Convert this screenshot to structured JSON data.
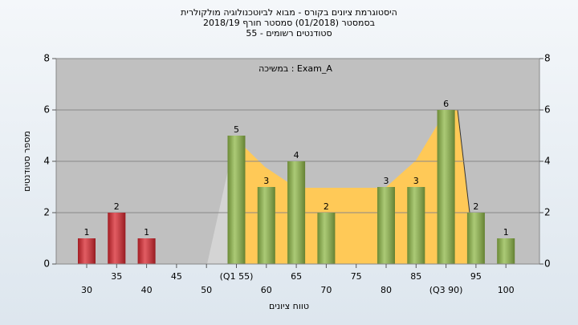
{
  "chart_data": {
    "type": "bar",
    "title": [
      "היסטוגרמת ציונים בקורס - מבוא לביוטכנולוגיה מולקולרית",
      "בסמסטר  (01/2018)  סמסטר חורף 2018/19",
      "סטודנטים רשומים - 55"
    ],
    "annotation": "במשיכה : Exam_A",
    "x_label": "טווח ציונים",
    "y_label": "מספר סטודנטים",
    "categories": [
      "30",
      "35",
      "40",
      "45",
      "50",
      "(Q1 55)",
      "60",
      "65",
      "70",
      "75",
      "80",
      "85",
      "(Q3 90)",
      "95",
      "100"
    ],
    "values": [
      1,
      2,
      1,
      0,
      0,
      5,
      3,
      4,
      2,
      0,
      3,
      3,
      6,
      2,
      1
    ],
    "colors": [
      "#d8262e",
      "#d8262e",
      "#d8262e",
      "#d8262e",
      "#8fb848",
      "#8fb848",
      "#8fb848",
      "#8fb848",
      "#8fb848",
      "#8fb848",
      "#8fb848",
      "#8fb848",
      "#8fb848",
      "#8fb848",
      "#8fb848"
    ],
    "ylim": [
      0,
      8
    ],
    "yticks": [
      0,
      2,
      4,
      6,
      8
    ],
    "y2lim": [
      0,
      8
    ],
    "y2ticks": [
      0,
      2,
      4,
      6,
      8
    ],
    "grid": true
  }
}
